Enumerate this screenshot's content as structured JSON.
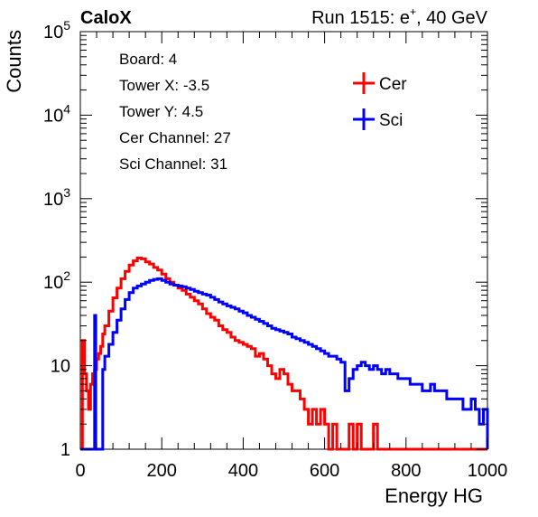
{
  "header": {
    "experiment": "CaloX",
    "run_label": "Run 1515: e",
    "run_sup": "+",
    "run_tail": ", 40 GeV"
  },
  "info_box": {
    "lines": [
      "Board: 4",
      "Tower X: -3.5",
      "Tower Y: 4.5",
      "Cer Channel: 27",
      "Sci Channel: 31"
    ]
  },
  "chart_data": {
    "type": "line",
    "subtype": "step-histogram",
    "xlabel": "Energy HG",
    "ylabel": "Counts",
    "xlim": [
      0,
      1000
    ],
    "ylim": [
      1,
      100000
    ],
    "yscale": "log",
    "xticks": [
      0,
      200,
      400,
      600,
      800,
      1000
    ],
    "xtick_labels": [
      "0",
      "200",
      "400",
      "600",
      "800",
      "1000"
    ],
    "yticks": [
      1,
      10,
      100,
      1000,
      10000,
      100000
    ],
    "ytick_labels": [
      {
        "base": "1",
        "exp": ""
      },
      {
        "base": "10",
        "exp": ""
      },
      {
        "base": "10",
        "exp": "2"
      },
      {
        "base": "10",
        "exp": "3"
      },
      {
        "base": "10",
        "exp": "4"
      },
      {
        "base": "10",
        "exp": "5"
      }
    ],
    "legend_position": "top-right",
    "series": [
      {
        "name": "Cer",
        "color": "#ff0000",
        "points": [
          [
            0,
            1
          ],
          [
            5,
            20
          ],
          [
            10,
            8
          ],
          [
            15,
            5
          ],
          [
            20,
            3
          ],
          [
            25,
            6
          ],
          [
            30,
            8
          ],
          [
            35,
            9
          ],
          [
            40,
            12
          ],
          [
            45,
            14
          ],
          [
            50,
            17
          ],
          [
            55,
            24
          ],
          [
            60,
            30
          ],
          [
            70,
            45
          ],
          [
            80,
            65
          ],
          [
            90,
            85
          ],
          [
            100,
            110
          ],
          [
            110,
            135
          ],
          [
            120,
            160
          ],
          [
            130,
            180
          ],
          [
            140,
            195
          ],
          [
            150,
            190
          ],
          [
            160,
            175
          ],
          [
            170,
            165
          ],
          [
            180,
            150
          ],
          [
            190,
            140
          ],
          [
            200,
            125
          ],
          [
            210,
            110
          ],
          [
            220,
            100
          ],
          [
            230,
            92
          ],
          [
            240,
            85
          ],
          [
            250,
            80
          ],
          [
            260,
            72
          ],
          [
            270,
            66
          ],
          [
            280,
            60
          ],
          [
            290,
            55
          ],
          [
            300,
            48
          ],
          [
            310,
            42
          ],
          [
            320,
            38
          ],
          [
            330,
            35
          ],
          [
            340,
            30
          ],
          [
            350,
            27
          ],
          [
            360,
            25
          ],
          [
            370,
            22
          ],
          [
            380,
            20
          ],
          [
            390,
            19
          ],
          [
            400,
            18
          ],
          [
            410,
            17
          ],
          [
            420,
            16
          ],
          [
            430,
            13
          ],
          [
            440,
            14
          ],
          [
            450,
            12
          ],
          [
            460,
            10
          ],
          [
            470,
            8
          ],
          [
            480,
            7
          ],
          [
            490,
            9
          ],
          [
            500,
            8
          ],
          [
            510,
            6
          ],
          [
            520,
            5
          ],
          [
            530,
            5
          ],
          [
            540,
            4
          ],
          [
            550,
            3
          ],
          [
            560,
            2
          ],
          [
            570,
            3
          ],
          [
            580,
            2
          ],
          [
            590,
            3
          ],
          [
            600,
            2
          ],
          [
            610,
            1
          ],
          [
            620,
            2
          ],
          [
            630,
            1
          ],
          [
            640,
            1
          ],
          [
            650,
            1
          ],
          [
            660,
            2
          ],
          [
            670,
            1
          ],
          [
            680,
            2
          ],
          [
            690,
            1
          ],
          [
            700,
            1
          ],
          [
            710,
            1
          ],
          [
            720,
            2
          ],
          [
            730,
            1
          ],
          [
            740,
            1
          ],
          [
            750,
            1
          ],
          [
            760,
            1
          ],
          [
            780,
            1
          ],
          [
            800,
            1
          ],
          [
            1000,
            1
          ]
        ]
      },
      {
        "name": "Sci",
        "color": "#0000ff",
        "points": [
          [
            0,
            1
          ],
          [
            30,
            1
          ],
          [
            35,
            40
          ],
          [
            38,
            1
          ],
          [
            50,
            1
          ],
          [
            55,
            9
          ],
          [
            60,
            13
          ],
          [
            70,
            18
          ],
          [
            80,
            25
          ],
          [
            90,
            35
          ],
          [
            100,
            48
          ],
          [
            110,
            62
          ],
          [
            120,
            75
          ],
          [
            130,
            85
          ],
          [
            140,
            90
          ],
          [
            150,
            95
          ],
          [
            160,
            100
          ],
          [
            170,
            105
          ],
          [
            180,
            108
          ],
          [
            190,
            110
          ],
          [
            200,
            105
          ],
          [
            210,
            100
          ],
          [
            220,
            95
          ],
          [
            230,
            92
          ],
          [
            240,
            90
          ],
          [
            250,
            88
          ],
          [
            260,
            85
          ],
          [
            270,
            82
          ],
          [
            280,
            78
          ],
          [
            290,
            75
          ],
          [
            300,
            72
          ],
          [
            310,
            70
          ],
          [
            320,
            66
          ],
          [
            330,
            62
          ],
          [
            340,
            58
          ],
          [
            350,
            55
          ],
          [
            360,
            52
          ],
          [
            370,
            50
          ],
          [
            380,
            48
          ],
          [
            390,
            45
          ],
          [
            400,
            43
          ],
          [
            410,
            40
          ],
          [
            420,
            38
          ],
          [
            430,
            36
          ],
          [
            440,
            34
          ],
          [
            450,
            32
          ],
          [
            460,
            30
          ],
          [
            470,
            28
          ],
          [
            480,
            27
          ],
          [
            490,
            26
          ],
          [
            500,
            25
          ],
          [
            510,
            24
          ],
          [
            520,
            22
          ],
          [
            530,
            21
          ],
          [
            540,
            20
          ],
          [
            550,
            19
          ],
          [
            560,
            18
          ],
          [
            570,
            17
          ],
          [
            580,
            16
          ],
          [
            590,
            15
          ],
          [
            600,
            14
          ],
          [
            610,
            13
          ],
          [
            620,
            13
          ],
          [
            630,
            12
          ],
          [
            640,
            11
          ],
          [
            650,
            5
          ],
          [
            660,
            7
          ],
          [
            670,
            9
          ],
          [
            680,
            10
          ],
          [
            690,
            11
          ],
          [
            700,
            10
          ],
          [
            710,
            9
          ],
          [
            720,
            10
          ],
          [
            730,
            9
          ],
          [
            740,
            8
          ],
          [
            750,
            9
          ],
          [
            760,
            8
          ],
          [
            770,
            8
          ],
          [
            780,
            7
          ],
          [
            790,
            7
          ],
          [
            800,
            7
          ],
          [
            810,
            6
          ],
          [
            820,
            6
          ],
          [
            830,
            6
          ],
          [
            840,
            5
          ],
          [
            850,
            5
          ],
          [
            860,
            6
          ],
          [
            870,
            5
          ],
          [
            880,
            5
          ],
          [
            890,
            5
          ],
          [
            900,
            4
          ],
          [
            910,
            4
          ],
          [
            920,
            4
          ],
          [
            930,
            4
          ],
          [
            940,
            3
          ],
          [
            950,
            3
          ],
          [
            960,
            4
          ],
          [
            970,
            3
          ],
          [
            980,
            2
          ],
          [
            990,
            3
          ],
          [
            1000,
            1
          ]
        ]
      }
    ]
  }
}
